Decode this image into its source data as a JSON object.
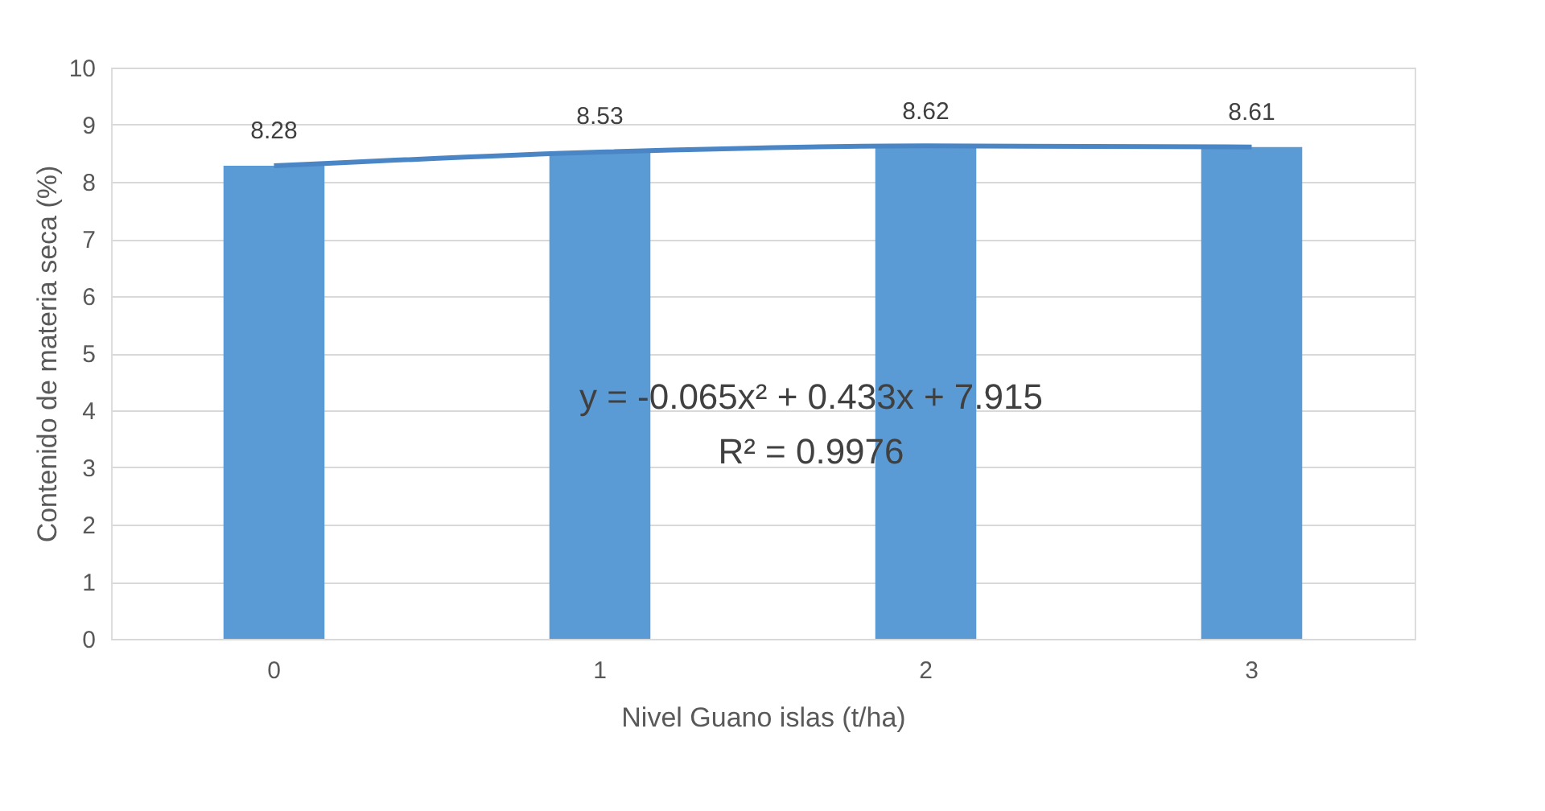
{
  "chart_data": {
    "type": "bar",
    "xlabel": "Nivel Guano islas (t/ha)",
    "ylabel": "Contenido de materia seca (%)",
    "categories": [
      "0",
      "1",
      "2",
      "3"
    ],
    "series": [
      {
        "color": "#5b9bd5",
        "values": [
          8.28,
          8.53,
          8.62,
          8.61
        ],
        "value_labels": [
          "8.28",
          "8.53",
          "8.62",
          "8.61"
        ]
      },
      {
        "type": "line",
        "color": "#4a86c5",
        "values": [
          8.28,
          8.52,
          8.63,
          8.61
        ]
      }
    ],
    "ylim": [
      0,
      10
    ],
    "yticks": [
      0,
      1,
      2,
      3,
      4,
      5,
      6,
      7,
      8,
      9,
      10
    ],
    "grid": "y",
    "legend": false,
    "annotations": [
      "y = -0.065x² + 0.433x + 7.915",
      "R² = 0.9976"
    ]
  }
}
